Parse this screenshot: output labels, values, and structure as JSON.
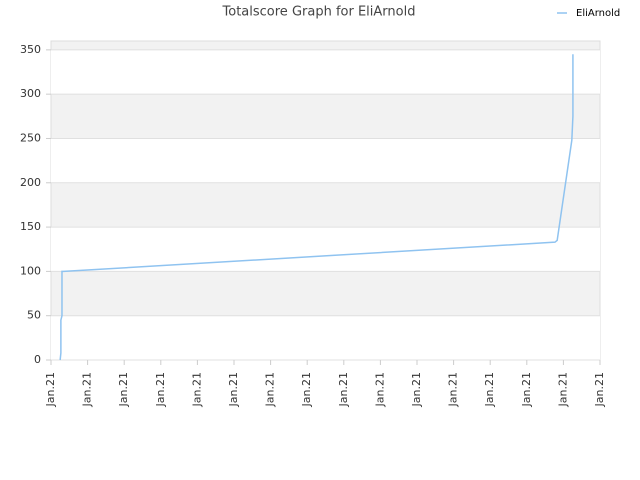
{
  "chart_data": {
    "type": "line",
    "title": "Totalscore Graph for EliArnold",
    "x": [
      0.25,
      0.27,
      0.27,
      0.3,
      0.3,
      0.35,
      13.77,
      13.83,
      14.23,
      14.26,
      14.26
    ],
    "series": [
      {
        "name": "EliArnold",
        "color": "#8fc3f0",
        "values": [
          0,
          8,
          45,
          50,
          100,
          100,
          133,
          135,
          248,
          275,
          345
        ]
      }
    ],
    "xlim": [
      0,
      15
    ],
    "xticks": [
      {
        "value": 0,
        "label": "Jan.21"
      },
      {
        "value": 1,
        "label": "Jan.21"
      },
      {
        "value": 2,
        "label": "Jan.21"
      },
      {
        "value": 3,
        "label": "Jan.21"
      },
      {
        "value": 4,
        "label": "Jan.21"
      },
      {
        "value": 5,
        "label": "Jan.21"
      },
      {
        "value": 6,
        "label": "Jan.21"
      },
      {
        "value": 7,
        "label": "Jan.21"
      },
      {
        "value": 8,
        "label": "Jan.21"
      },
      {
        "value": 9,
        "label": "Jan.21"
      },
      {
        "value": 10,
        "label": "Jan.21"
      },
      {
        "value": 11,
        "label": "Jan.21"
      },
      {
        "value": 12,
        "label": "Jan.21"
      },
      {
        "value": 13,
        "label": "Jan.21"
      },
      {
        "value": 14,
        "label": "Jan.21"
      },
      {
        "value": 15,
        "label": "Jan.21"
      }
    ],
    "ylim": [
      0,
      360
    ],
    "yticks": [
      0,
      50,
      100,
      150,
      200,
      250,
      300,
      350
    ],
    "grid": true,
    "legend": "top-right"
  }
}
